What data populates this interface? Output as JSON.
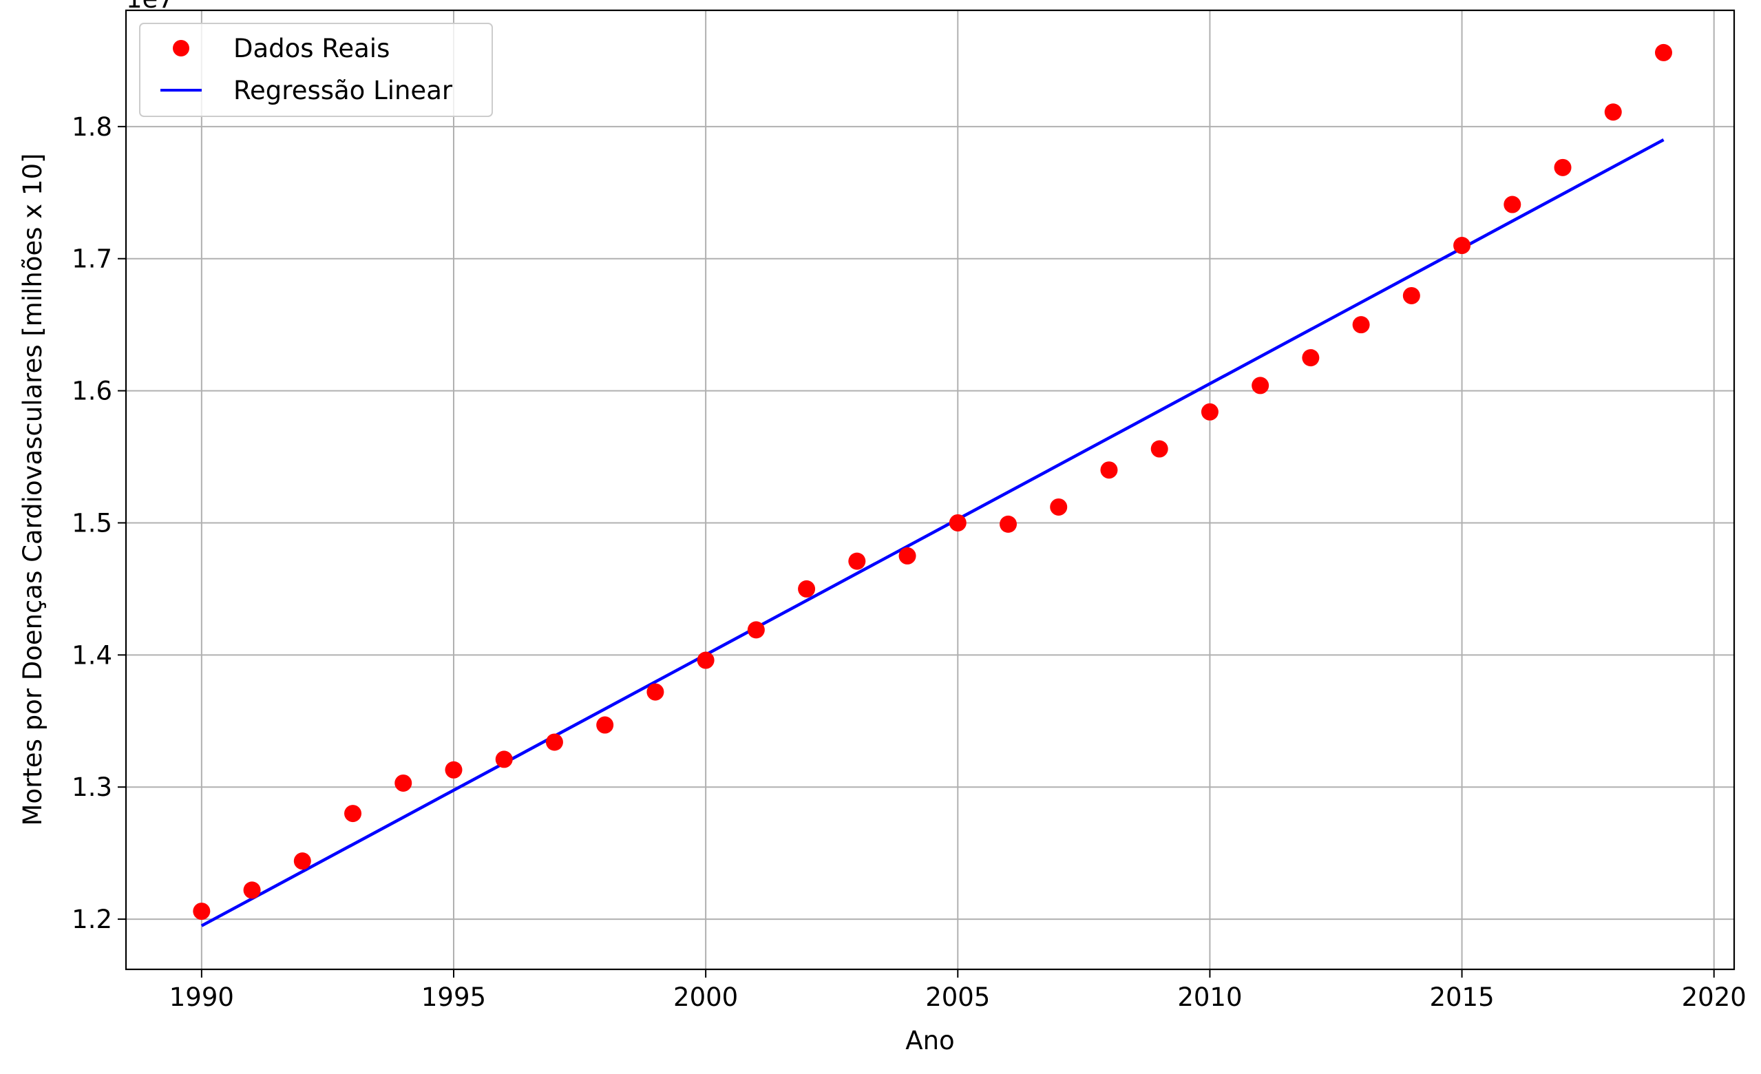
{
  "chart_data": {
    "type": "scatter",
    "title": "",
    "xlabel": "Ano",
    "ylabel": "Mortes por Doenças Cardiovasculares [milhões x 10]",
    "y_offset_label": "1e7",
    "xlim": [
      1988.5,
      2020.4
    ],
    "ylim": [
      1.162,
      1.888
    ],
    "x_ticks": [
      1990,
      1995,
      2000,
      2005,
      2010,
      2015,
      2020
    ],
    "x_tick_labels": [
      "1990",
      "1995",
      "2000",
      "2005",
      "2010",
      "2015",
      "2020"
    ],
    "y_ticks": [
      1.2,
      1.3,
      1.4,
      1.5,
      1.6,
      1.7,
      1.8
    ],
    "y_tick_labels": [
      "1.2",
      "1.3",
      "1.4",
      "1.5",
      "1.6",
      "1.7",
      "1.8"
    ],
    "grid": true,
    "legend_position": "top-left",
    "series": [
      {
        "name": "Dados Reais",
        "kind": "scatter",
        "color": "#ff0000",
        "x": [
          1990,
          1991,
          1992,
          1993,
          1994,
          1995,
          1996,
          1997,
          1998,
          1999,
          2000,
          2001,
          2002,
          2003,
          2004,
          2005,
          2006,
          2007,
          2008,
          2009,
          2010,
          2011,
          2012,
          2013,
          2014,
          2015,
          2016,
          2017,
          2018,
          2019
        ],
        "y": [
          1.206,
          1.222,
          1.244,
          1.28,
          1.303,
          1.313,
          1.321,
          1.334,
          1.347,
          1.372,
          1.396,
          1.419,
          1.45,
          1.471,
          1.475,
          1.5,
          1.499,
          1.512,
          1.54,
          1.556,
          1.584,
          1.604,
          1.625,
          1.65,
          1.672,
          1.71,
          1.741,
          1.769,
          1.811,
          1.856
        ]
      },
      {
        "name": "Regressão Linear",
        "kind": "line",
        "color": "#0000ff",
        "x": [
          1990,
          2019
        ],
        "y": [
          1.195,
          1.79
        ]
      }
    ]
  }
}
